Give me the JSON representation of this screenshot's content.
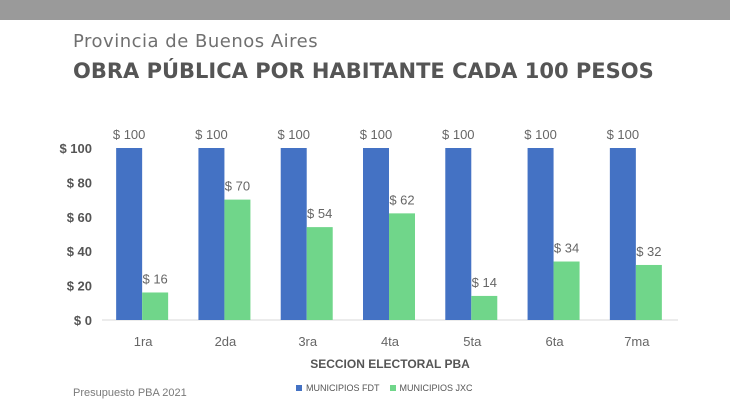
{
  "header": {
    "subtitle": "Provincia de Buenos Aires",
    "title": "OBRA PÚBLICA POR HABITANTE CADA 100 PESOS"
  },
  "footer": {
    "source": "Presupuesto PBA 2021"
  },
  "colors": {
    "top_bar": "#9a9a9a",
    "fdt": "#4472c4",
    "jxc": "#70d68a"
  },
  "chart_data": {
    "type": "bar",
    "title": "OBRA PÚBLICA POR HABITANTE CADA 100 PESOS",
    "xlabel": "SECCION ELECTORAL PBA",
    "ylabel": "",
    "categories": [
      "1ra",
      "2da",
      "3ra",
      "4ta",
      "5ta",
      "6ta",
      "7ma"
    ],
    "series": [
      {
        "name": "MUNICIPIOS FDT",
        "values": [
          100,
          100,
          100,
          100,
          100,
          100,
          100
        ],
        "labels": [
          "$ 100",
          "$ 100",
          "$ 100",
          "$ 100",
          "$ 100",
          "$ 100",
          "$ 100"
        ]
      },
      {
        "name": "MUNICIPIOS JXC",
        "values": [
          16,
          70,
          54,
          62,
          14,
          34,
          32
        ],
        "labels": [
          "$ 16",
          "$ 70",
          "$ 54",
          "$ 62",
          "$ 14",
          "$ 34",
          "$ 32"
        ]
      }
    ],
    "ylim": [
      0,
      100
    ],
    "yticks": [
      0,
      20,
      40,
      60,
      80,
      100
    ],
    "ytick_labels": [
      "$ 0",
      "$ 20",
      "$ 40",
      "$ 60",
      "$ 80",
      "$ 100"
    ],
    "grid": false,
    "legend_position": "bottom"
  }
}
